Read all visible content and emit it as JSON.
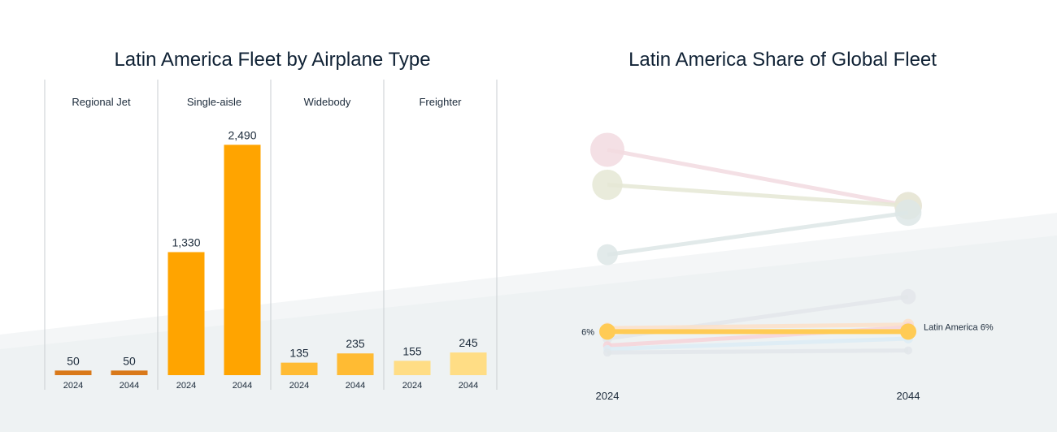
{
  "chart_data": [
    {
      "type": "bar",
      "title": "Latin America Fleet by Airplane Type",
      "panels": [
        {
          "name": "Regional Jet",
          "categories": [
            "2024",
            "2044"
          ],
          "values": [
            50,
            50
          ],
          "labels": [
            "50",
            "50"
          ],
          "color": "#d9791a"
        },
        {
          "name": "Single-aisle",
          "categories": [
            "2024",
            "2044"
          ],
          "values": [
            1330,
            2490
          ],
          "labels": [
            "1,330",
            "2,490"
          ],
          "color": "#ffa400"
        },
        {
          "name": "Widebody",
          "categories": [
            "2024",
            "2044"
          ],
          "values": [
            135,
            235
          ],
          "labels": [
            "135",
            "235"
          ],
          "color": "#ffbb33"
        },
        {
          "name": "Freighter",
          "categories": [
            "2024",
            "2044"
          ],
          "values": [
            155,
            245
          ],
          "labels": [
            "155",
            "245"
          ],
          "color": "#ffdd85"
        }
      ],
      "ylim": [
        0,
        2800
      ],
      "grid": false
    },
    {
      "type": "line",
      "title": "Latin America Share of Global Fleet",
      "x": [
        "2024",
        "2044"
      ],
      "ylim": [
        0,
        36
      ],
      "series": [
        {
          "values": [
            32,
            24
          ],
          "color": "#f2dbe0",
          "faded": true
        },
        {
          "values": [
            27,
            24
          ],
          "color": "#e5e8d5",
          "faded": true
        },
        {
          "values": [
            17,
            23
          ],
          "color": "#dde6e6",
          "faded": true
        },
        {
          "values": [
            5,
            11
          ],
          "color": "#e3e6ea",
          "faded": true
        },
        {
          "values": [
            6.5,
            7
          ],
          "color": "#fbe1c8",
          "faded": true
        },
        {
          "values": [
            4,
            6.6
          ],
          "color": "#f6d4d8",
          "faded": true
        },
        {
          "values": [
            3.5,
            5
          ],
          "color": "#dcecf5",
          "faded": true
        },
        {
          "values": [
            3,
            3.3
          ],
          "color": "#e2e6ea",
          "faded": true
        },
        {
          "values": [
            6,
            6
          ],
          "color": "#ffcb55",
          "highlight": true,
          "name": "Latin America 6%",
          "start_label": "6%"
        }
      ]
    }
  ]
}
